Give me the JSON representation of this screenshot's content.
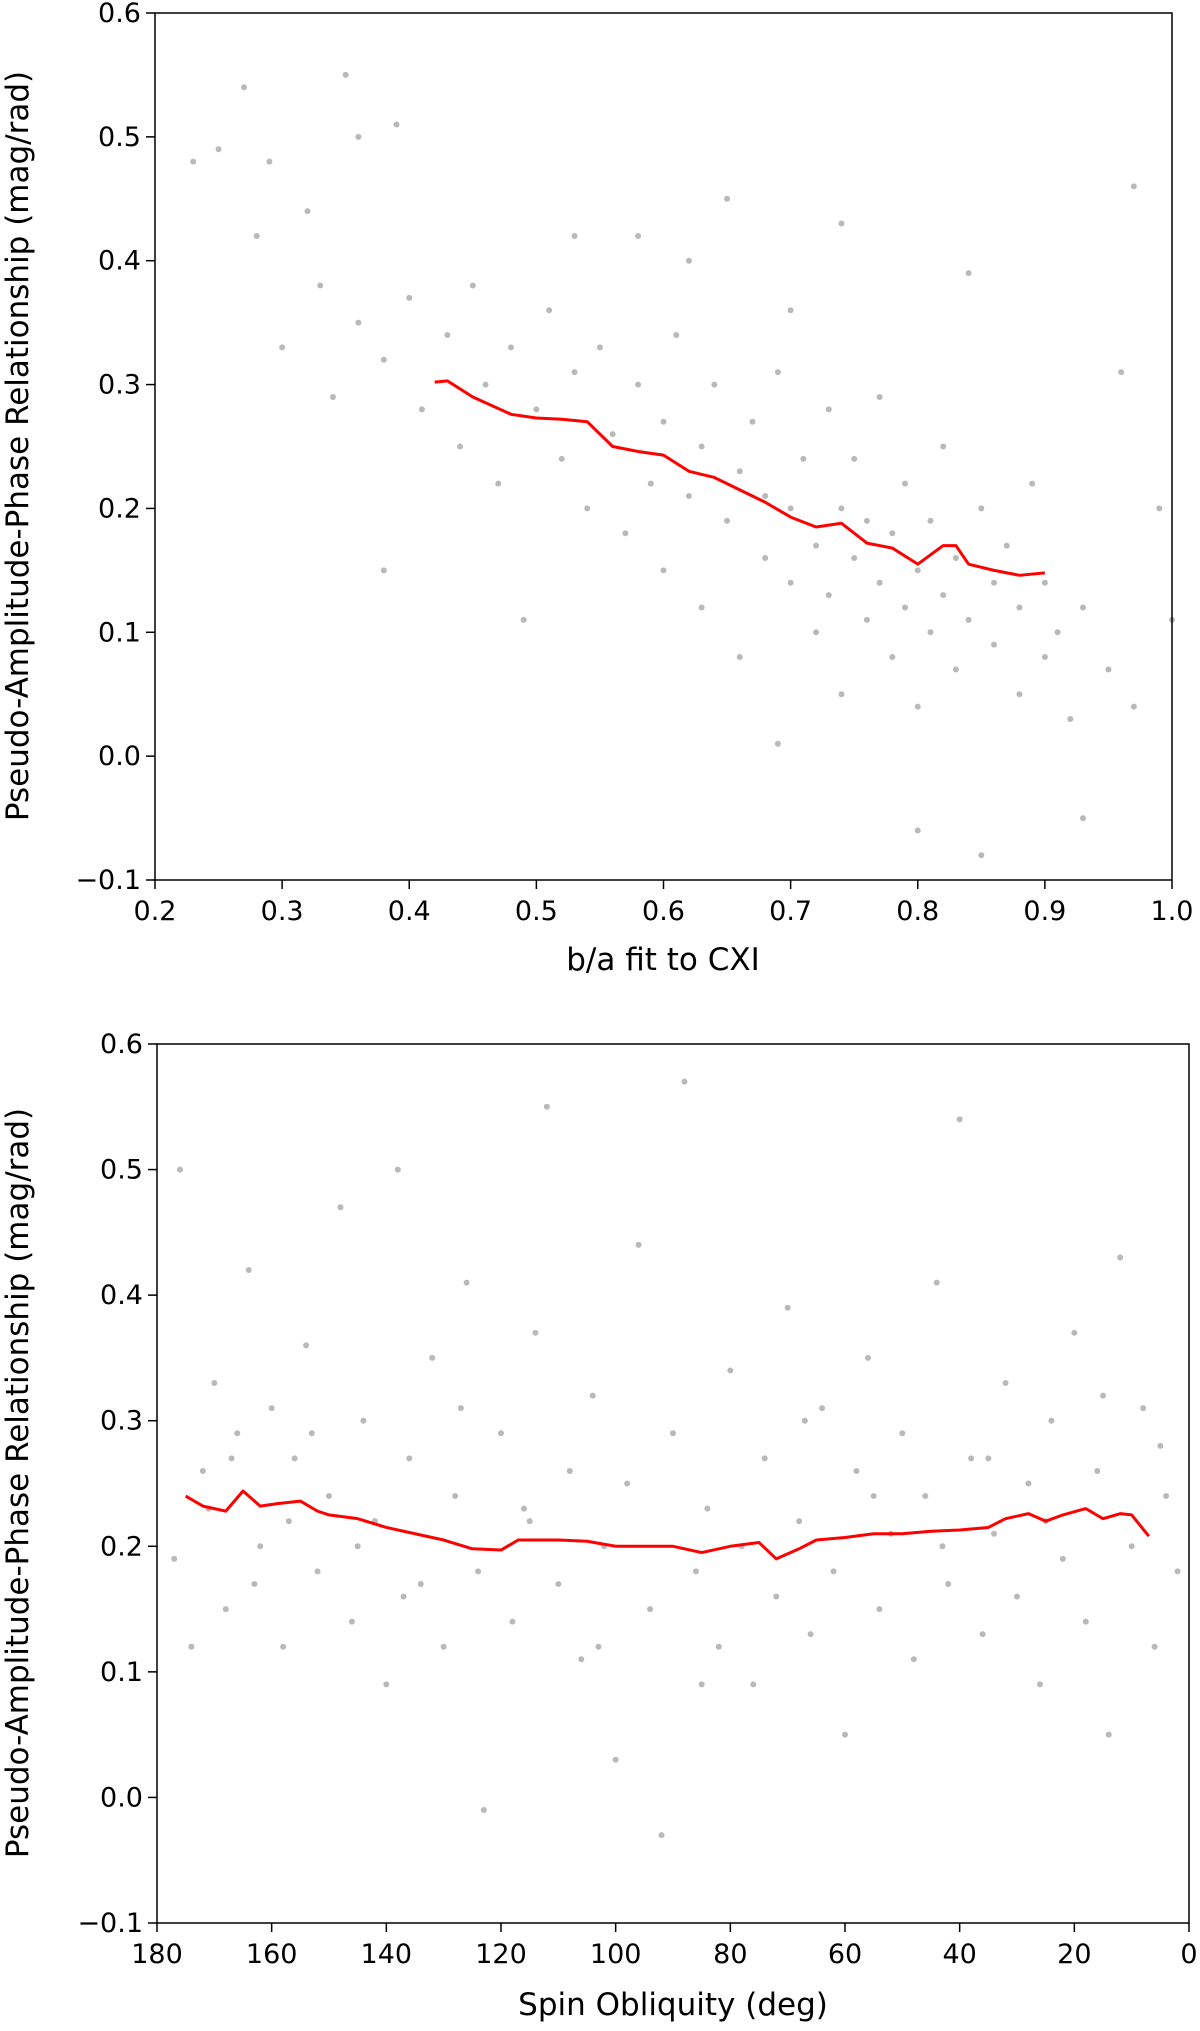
{
  "chart_data": [
    {
      "type": "scatter",
      "xlabel": "b/a fit to CXI",
      "ylabel": "Pseudo-Amplitude-Phase Relationship (mag/rad)",
      "xlim": [
        0.2,
        1.0
      ],
      "ylim": [
        -0.1,
        0.6
      ],
      "xticks": [
        "0.2",
        "0.3",
        "0.4",
        "0.5",
        "0.6",
        "0.7",
        "0.8",
        "0.9",
        "1.0"
      ],
      "yticks": [
        "−0.1",
        "0.0",
        "0.1",
        "0.2",
        "0.3",
        "0.4",
        "0.5",
        "0.6"
      ],
      "grid": false,
      "colors": {
        "points": "#808080",
        "trend": "#ff0000"
      },
      "points": [
        [
          0.23,
          0.48
        ],
        [
          0.25,
          0.49
        ],
        [
          0.27,
          0.54
        ],
        [
          0.29,
          0.48
        ],
        [
          0.35,
          0.55
        ],
        [
          0.36,
          0.5
        ],
        [
          0.39,
          0.51
        ],
        [
          0.97,
          0.46
        ],
        [
          0.28,
          0.42
        ],
        [
          0.3,
          0.33
        ],
        [
          0.32,
          0.44
        ],
        [
          0.33,
          0.38
        ],
        [
          0.34,
          0.29
        ],
        [
          0.36,
          0.35
        ],
        [
          0.38,
          0.15
        ],
        [
          0.38,
          0.32
        ],
        [
          0.4,
          0.37
        ],
        [
          0.41,
          0.28
        ],
        [
          0.43,
          0.34
        ],
        [
          0.44,
          0.25
        ],
        [
          0.45,
          0.38
        ],
        [
          0.46,
          0.3
        ],
        [
          0.47,
          0.22
        ],
        [
          0.48,
          0.33
        ],
        [
          0.49,
          0.11
        ],
        [
          0.5,
          0.28
        ],
        [
          0.51,
          0.36
        ],
        [
          0.52,
          0.24
        ],
        [
          0.53,
          0.31
        ],
        [
          0.54,
          0.2
        ],
        [
          0.55,
          0.33
        ],
        [
          0.56,
          0.26
        ],
        [
          0.57,
          0.18
        ],
        [
          0.58,
          0.3
        ],
        [
          0.59,
          0.22
        ],
        [
          0.6,
          0.27
        ],
        [
          0.6,
          0.15
        ],
        [
          0.61,
          0.34
        ],
        [
          0.62,
          0.21
        ],
        [
          0.63,
          0.25
        ],
        [
          0.63,
          0.12
        ],
        [
          0.64,
          0.3
        ],
        [
          0.65,
          0.19
        ],
        [
          0.66,
          0.23
        ],
        [
          0.66,
          0.08
        ],
        [
          0.67,
          0.27
        ],
        [
          0.68,
          0.16
        ],
        [
          0.68,
          0.21
        ],
        [
          0.69,
          0.31
        ],
        [
          0.7,
          0.14
        ],
        [
          0.7,
          0.2
        ],
        [
          0.71,
          0.24
        ],
        [
          0.72,
          0.1
        ],
        [
          0.72,
          0.17
        ],
        [
          0.73,
          0.28
        ],
        [
          0.73,
          0.13
        ],
        [
          0.74,
          0.2
        ],
        [
          0.74,
          0.05
        ],
        [
          0.75,
          0.16
        ],
        [
          0.75,
          0.24
        ],
        [
          0.76,
          0.11
        ],
        [
          0.76,
          0.19
        ],
        [
          0.77,
          0.14
        ],
        [
          0.77,
          0.29
        ],
        [
          0.78,
          0.08
        ],
        [
          0.78,
          0.18
        ],
        [
          0.79,
          0.12
        ],
        [
          0.79,
          0.22
        ],
        [
          0.8,
          0.15
        ],
        [
          0.8,
          0.04
        ],
        [
          0.81,
          0.19
        ],
        [
          0.81,
          0.1
        ],
        [
          0.82,
          0.13
        ],
        [
          0.82,
          0.25
        ],
        [
          0.83,
          0.07
        ],
        [
          0.83,
          0.16
        ],
        [
          0.84,
          0.11
        ],
        [
          0.85,
          0.2
        ],
        [
          0.85,
          -0.08
        ],
        [
          0.86,
          0.09
        ],
        [
          0.86,
          0.14
        ],
        [
          0.87,
          0.17
        ],
        [
          0.88,
          0.05
        ],
        [
          0.88,
          0.12
        ],
        [
          0.89,
          0.22
        ],
        [
          0.9,
          0.08
        ],
        [
          0.9,
          0.14
        ],
        [
          0.91,
          0.1
        ],
        [
          0.92,
          0.03
        ],
        [
          0.93,
          -0.05
        ],
        [
          0.93,
          0.12
        ],
        [
          0.95,
          0.07
        ],
        [
          0.96,
          0.31
        ],
        [
          0.97,
          0.04
        ],
        [
          0.99,
          0.2
        ],
        [
          1.0,
          0.11
        ],
        [
          0.62,
          0.4
        ],
        [
          0.7,
          0.36
        ],
        [
          0.74,
          0.43
        ],
        [
          0.84,
          0.39
        ],
        [
          0.65,
          0.45
        ],
        [
          0.58,
          0.42
        ],
        [
          0.53,
          0.42
        ],
        [
          0.69,
          0.01
        ],
        [
          0.8,
          -0.06
        ]
      ],
      "trend": [
        [
          0.42,
          0.302
        ],
        [
          0.43,
          0.303
        ],
        [
          0.45,
          0.29
        ],
        [
          0.48,
          0.276
        ],
        [
          0.5,
          0.273
        ],
        [
          0.52,
          0.272
        ],
        [
          0.54,
          0.27
        ],
        [
          0.56,
          0.25
        ],
        [
          0.58,
          0.246
        ],
        [
          0.6,
          0.243
        ],
        [
          0.62,
          0.23
        ],
        [
          0.64,
          0.225
        ],
        [
          0.66,
          0.215
        ],
        [
          0.68,
          0.205
        ],
        [
          0.7,
          0.193
        ],
        [
          0.72,
          0.185
        ],
        [
          0.74,
          0.188
        ],
        [
          0.76,
          0.172
        ],
        [
          0.78,
          0.168
        ],
        [
          0.8,
          0.155
        ],
        [
          0.82,
          0.17
        ],
        [
          0.83,
          0.17
        ],
        [
          0.84,
          0.155
        ],
        [
          0.86,
          0.15
        ],
        [
          0.88,
          0.146
        ],
        [
          0.9,
          0.148
        ]
      ]
    },
    {
      "type": "scatter",
      "xlabel": "Spin Obliquity (deg)",
      "ylabel": "Pseudo-Amplitude-Phase Relationship (mag/rad)",
      "xlim": [
        180,
        0
      ],
      "ylim": [
        -0.1,
        0.6
      ],
      "xticks": [
        "180",
        "160",
        "140",
        "120",
        "100",
        "80",
        "60",
        "40",
        "20",
        "0"
      ],
      "yticks": [
        "−0.1",
        "0.0",
        "0.1",
        "0.2",
        "0.3",
        "0.4",
        "0.5",
        "0.6"
      ],
      "grid": false,
      "colors": {
        "points": "#808080",
        "trend": "#ff0000"
      },
      "points": [
        [
          176,
          0.5
        ],
        [
          172,
          0.26
        ],
        [
          170,
          0.33
        ],
        [
          168,
          0.15
        ],
        [
          166,
          0.29
        ],
        [
          164,
          0.42
        ],
        [
          162,
          0.2
        ],
        [
          160,
          0.31
        ],
        [
          158,
          0.12
        ],
        [
          156,
          0.27
        ],
        [
          154,
          0.36
        ],
        [
          152,
          0.18
        ],
        [
          150,
          0.24
        ],
        [
          148,
          0.47
        ],
        [
          146,
          0.14
        ],
        [
          144,
          0.3
        ],
        [
          142,
          0.22
        ],
        [
          140,
          0.09
        ],
        [
          138,
          0.5
        ],
        [
          136,
          0.27
        ],
        [
          134,
          0.17
        ],
        [
          132,
          0.35
        ],
        [
          130,
          0.12
        ],
        [
          128,
          0.24
        ],
        [
          126,
          0.41
        ],
        [
          124,
          0.18
        ],
        [
          123,
          -0.01
        ],
        [
          120,
          0.29
        ],
        [
          118,
          0.14
        ],
        [
          116,
          0.23
        ],
        [
          114,
          0.37
        ],
        [
          112,
          0.55
        ],
        [
          110,
          0.17
        ],
        [
          108,
          0.26
        ],
        [
          106,
          0.11
        ],
        [
          104,
          0.32
        ],
        [
          102,
          0.2
        ],
        [
          100,
          0.03
        ],
        [
          98,
          0.25
        ],
        [
          96,
          0.44
        ],
        [
          94,
          0.15
        ],
        [
          92,
          -0.03
        ],
        [
          90,
          0.29
        ],
        [
          88,
          0.57
        ],
        [
          86,
          0.18
        ],
        [
          84,
          0.23
        ],
        [
          82,
          0.12
        ],
        [
          80,
          0.34
        ],
        [
          78,
          0.2
        ],
        [
          76,
          0.09
        ],
        [
          74,
          0.27
        ],
        [
          72,
          0.16
        ],
        [
          70,
          0.39
        ],
        [
          68,
          0.22
        ],
        [
          66,
          0.13
        ],
        [
          64,
          0.31
        ],
        [
          62,
          0.18
        ],
        [
          60,
          0.05
        ],
        [
          58,
          0.26
        ],
        [
          56,
          0.35
        ],
        [
          54,
          0.15
        ],
        [
          52,
          0.21
        ],
        [
          50,
          0.29
        ],
        [
          48,
          0.11
        ],
        [
          46,
          0.24
        ],
        [
          44,
          0.41
        ],
        [
          42,
          0.17
        ],
        [
          40,
          0.54
        ],
        [
          38,
          0.27
        ],
        [
          36,
          0.13
        ],
        [
          34,
          0.21
        ],
        [
          32,
          0.33
        ],
        [
          30,
          0.16
        ],
        [
          28,
          0.25
        ],
        [
          26,
          0.09
        ],
        [
          24,
          0.3
        ],
        [
          22,
          0.19
        ],
        [
          20,
          0.37
        ],
        [
          18,
          0.14
        ],
        [
          16,
          0.26
        ],
        [
          14,
          0.05
        ],
        [
          12,
          0.43
        ],
        [
          10,
          0.2
        ],
        [
          8,
          0.31
        ],
        [
          6,
          0.12
        ],
        [
          4,
          0.24
        ],
        [
          2,
          0.18
        ],
        [
          177,
          0.19
        ],
        [
          174,
          0.12
        ],
        [
          171,
          0.23
        ],
        [
          167,
          0.27
        ],
        [
          163,
          0.17
        ],
        [
          157,
          0.22
        ],
        [
          153,
          0.29
        ],
        [
          145,
          0.2
        ],
        [
          137,
          0.16
        ],
        [
          127,
          0.31
        ],
        [
          115,
          0.22
        ],
        [
          103,
          0.12
        ],
        [
          85,
          0.09
        ],
        [
          67,
          0.3
        ],
        [
          55,
          0.24
        ],
        [
          43,
          0.2
        ],
        [
          35,
          0.27
        ],
        [
          25,
          0.22
        ],
        [
          15,
          0.32
        ],
        [
          5,
          0.28
        ]
      ],
      "trend": [
        [
          175,
          0.24
        ],
        [
          172,
          0.232
        ],
        [
          168,
          0.228
        ],
        [
          165,
          0.244
        ],
        [
          162,
          0.232
        ],
        [
          159,
          0.234
        ],
        [
          155,
          0.236
        ],
        [
          152,
          0.228
        ],
        [
          150,
          0.225
        ],
        [
          145,
          0.222
        ],
        [
          140,
          0.215
        ],
        [
          135,
          0.21
        ],
        [
          130,
          0.205
        ],
        [
          125,
          0.198
        ],
        [
          120,
          0.197
        ],
        [
          117,
          0.205
        ],
        [
          110,
          0.205
        ],
        [
          105,
          0.204
        ],
        [
          100,
          0.2
        ],
        [
          95,
          0.2
        ],
        [
          90,
          0.2
        ],
        [
          85,
          0.195
        ],
        [
          80,
          0.2
        ],
        [
          75,
          0.203
        ],
        [
          72,
          0.19
        ],
        [
          68,
          0.198
        ],
        [
          65,
          0.205
        ],
        [
          60,
          0.207
        ],
        [
          55,
          0.21
        ],
        [
          50,
          0.21
        ],
        [
          45,
          0.212
        ],
        [
          40,
          0.213
        ],
        [
          35,
          0.215
        ],
        [
          32,
          0.222
        ],
        [
          28,
          0.226
        ],
        [
          25,
          0.22
        ],
        [
          22,
          0.225
        ],
        [
          18,
          0.23
        ],
        [
          15,
          0.222
        ],
        [
          12,
          0.226
        ],
        [
          10,
          0.225
        ],
        [
          7,
          0.208
        ]
      ]
    }
  ]
}
